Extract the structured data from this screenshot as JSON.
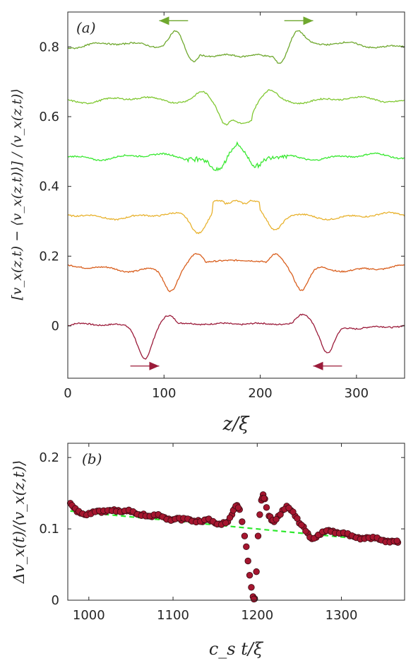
{
  "chart_data": [
    {
      "panel_label": "(a)",
      "type": "line",
      "xlabel": "z/ξ",
      "ylabel": "[v_x(z,t) − ⟨v_x(z,t)⟩] / ⟨v_x(z,t)⟩",
      "xlim": [
        0,
        350
      ],
      "ylim": [
        -0.15,
        0.9
      ],
      "xticks": [
        0,
        100,
        200,
        300
      ],
      "yticks": [
        0,
        0.2,
        0.4,
        0.6,
        0.8
      ],
      "xtick_labels": [
        "0",
        "100",
        "200",
        "300"
      ],
      "ytick_labels": [
        "0",
        "0.2",
        "0.4",
        "0.6",
        "0.8"
      ],
      "grid": false,
      "series": [
        {
          "color": "#9b1b3a",
          "baseline": 0.0,
          "kind": "outer_dips",
          "features": [
            [
              80,
              -0.085
            ],
            [
              105,
              0.03
            ],
            [
              245,
              0.03
            ],
            [
              270,
              -0.085
            ]
          ]
        },
        {
          "color": "#d95f1e",
          "baseline": 0.165,
          "kind": "mid_dips",
          "features": [
            [
              107,
              0.1
            ],
            [
              135,
              0.2
            ],
            [
              215,
              0.2
            ],
            [
              243,
              0.1
            ]
          ]
        },
        {
          "color": "#e8b22e",
          "baseline": 0.315,
          "kind": "plateau_up",
          "features": [
            [
              135,
              0.27
            ],
            [
              160,
              0.36
            ],
            [
              190,
              0.36
            ],
            [
              215,
              0.27
            ]
          ]
        },
        {
          "color": "#39e831",
          "baseline": 0.485,
          "kind": "central_peak",
          "features": [
            [
              155,
              0.45
            ],
            [
              175,
              0.52
            ],
            [
              195,
              0.45
            ]
          ]
        },
        {
          "color": "#80c832",
          "baseline": 0.648,
          "kind": "central_trough",
          "features": [
            [
              140,
              0.675
            ],
            [
              165,
              0.575
            ],
            [
              185,
              0.58
            ],
            [
              210,
              0.675
            ]
          ]
        },
        {
          "color": "#6fa82e",
          "baseline": 0.805,
          "kind": "side_peaks",
          "features": [
            [
              112,
              0.85
            ],
            [
              130,
              0.76
            ],
            [
              220,
              0.76
            ],
            [
              238,
              0.85
            ]
          ]
        }
      ],
      "annotations": [
        {
          "kind": "arrow",
          "direction": "left",
          "color": "#6fa82e",
          "from": 125,
          "to": 95,
          "y": 0.875
        },
        {
          "kind": "arrow",
          "direction": "right",
          "color": "#6fa82e",
          "from": 225,
          "to": 255,
          "y": 0.875
        },
        {
          "kind": "arrow",
          "direction": "right",
          "color": "#9b1b3a",
          "from": 65,
          "to": 95,
          "y": -0.115
        },
        {
          "kind": "arrow",
          "direction": "left",
          "color": "#9b1b3a",
          "from": 285,
          "to": 255,
          "y": -0.115
        }
      ]
    },
    {
      "panel_label": "(b)",
      "type": "scatter",
      "xlabel": "c_s t/ξ",
      "ylabel": "Δv_x(t)/⟨v_x(z,t)⟩",
      "xlim": [
        975,
        1375
      ],
      "ylim": [
        0,
        0.22
      ],
      "xticks": [
        1000,
        1100,
        1200,
        1300
      ],
      "yticks": [
        0,
        0.1,
        0.2
      ],
      "xtick_labels": [
        "1000",
        "1100",
        "1200",
        "1300"
      ],
      "ytick_labels": [
        "0",
        "0.1",
        "0.2"
      ],
      "grid": false,
      "marker_color": "#a5162f",
      "fit_line": {
        "color": "#2ee82e",
        "style": "dashed",
        "x": [
          978,
          1367
        ],
        "y": [
          0.125,
          0.081
        ]
      },
      "x": [
        978,
        982,
        986,
        990,
        995,
        1000,
        1005,
        1010,
        1015,
        1020,
        1025,
        1030,
        1035,
        1040,
        1045,
        1050,
        1055,
        1060,
        1065,
        1070,
        1075,
        1080,
        1085,
        1090,
        1095,
        1100,
        1105,
        1110,
        1115,
        1120,
        1125,
        1130,
        1135,
        1140,
        1145,
        1150,
        1155,
        1160,
        1165,
        1170,
        1173,
        1176,
        1179,
        1182,
        1185,
        1187,
        1189,
        1191,
        1193,
        1195,
        1197,
        1199,
        1201,
        1203,
        1205,
        1207,
        1209,
        1211,
        1214,
        1217,
        1220,
        1225,
        1230,
        1235,
        1240,
        1245,
        1250,
        1255,
        1260,
        1265,
        1270,
        1275,
        1280,
        1285,
        1290,
        1295,
        1300,
        1305,
        1310,
        1315,
        1320,
        1325,
        1330,
        1335,
        1340,
        1345,
        1350,
        1355,
        1360,
        1365,
        1367
      ],
      "y": [
        0.136,
        0.13,
        0.124,
        0.122,
        0.12,
        0.122,
        0.124,
        0.125,
        0.123,
        0.124,
        0.126,
        0.127,
        0.126,
        0.124,
        0.125,
        0.124,
        0.122,
        0.12,
        0.121,
        0.118,
        0.117,
        0.119,
        0.118,
        0.116,
        0.114,
        0.113,
        0.115,
        0.112,
        0.114,
        0.113,
        0.111,
        0.112,
        0.11,
        0.113,
        0.111,
        0.108,
        0.107,
        0.109,
        0.11,
        0.12,
        0.128,
        0.133,
        0.127,
        0.11,
        0.09,
        0.075,
        0.055,
        0.035,
        0.018,
        0.005,
        0.002,
        0.04,
        0.09,
        0.12,
        0.14,
        0.148,
        0.142,
        0.13,
        0.118,
        0.112,
        0.11,
        0.118,
        0.126,
        0.132,
        0.126,
        0.118,
        0.108,
        0.103,
        0.094,
        0.086,
        0.088,
        0.092,
        0.096,
        0.098,
        0.097,
        0.095,
        0.094,
        0.093,
        0.09,
        0.089,
        0.088,
        0.087,
        0.088,
        0.086,
        0.087,
        0.085,
        0.084,
        0.083,
        0.083,
        0.082,
        0.081
      ]
    }
  ]
}
